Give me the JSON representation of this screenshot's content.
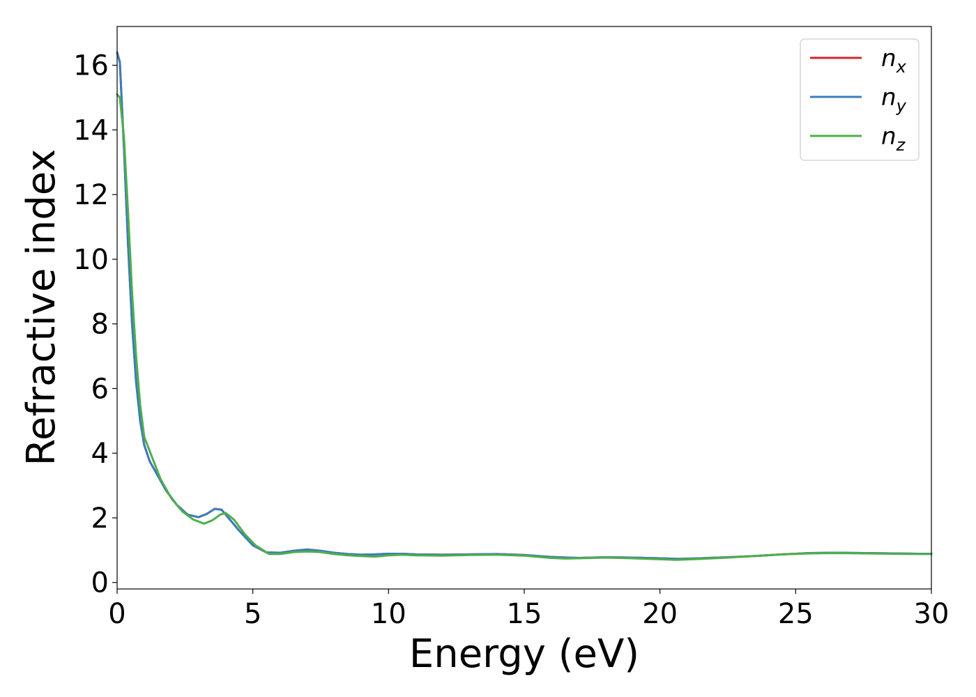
{
  "chart_data": {
    "type": "line",
    "title": "",
    "xlabel": "Energy (eV)",
    "ylabel": "Refractive index",
    "xlim": [
      0,
      30
    ],
    "ylim": [
      -0.2,
      17.2
    ],
    "xticks": [
      0,
      5,
      10,
      15,
      20,
      25,
      30
    ],
    "yticks": [
      0,
      2,
      4,
      6,
      8,
      10,
      12,
      14,
      16
    ],
    "xtick_labels": [
      "0",
      "5",
      "10",
      "15",
      "20",
      "25",
      "30"
    ],
    "ytick_labels": [
      "0",
      "2",
      "4",
      "6",
      "8",
      "10",
      "12",
      "14",
      "16"
    ],
    "grid": false,
    "legend_position": "top-right",
    "series": [
      {
        "name": "n",
        "subscript": "x",
        "color": "#d62728",
        "points": [
          [
            0,
            16.4
          ],
          [
            0.1,
            16.1
          ],
          [
            0.25,
            13.5
          ],
          [
            0.4,
            10.5
          ],
          [
            0.55,
            8.0
          ],
          [
            0.7,
            6.2
          ],
          [
            0.85,
            5.0
          ],
          [
            1.0,
            4.25
          ],
          [
            1.2,
            3.75
          ],
          [
            1.5,
            3.3
          ],
          [
            1.8,
            2.85
          ],
          [
            2.2,
            2.4
          ],
          [
            2.6,
            2.1
          ],
          [
            3.0,
            2.02
          ],
          [
            3.3,
            2.12
          ],
          [
            3.6,
            2.28
          ],
          [
            3.85,
            2.25
          ],
          [
            4.1,
            2.0
          ],
          [
            4.5,
            1.6
          ],
          [
            5.0,
            1.15
          ],
          [
            5.5,
            0.93
          ],
          [
            6.0,
            0.92
          ],
          [
            6.5,
            0.98
          ],
          [
            7.0,
            1.02
          ],
          [
            7.5,
            0.98
          ],
          [
            8.0,
            0.92
          ],
          [
            8.5,
            0.88
          ],
          [
            9.0,
            0.86
          ],
          [
            9.5,
            0.87
          ],
          [
            10.0,
            0.89
          ],
          [
            10.5,
            0.89
          ],
          [
            11.0,
            0.87
          ],
          [
            12.0,
            0.86
          ],
          [
            13.0,
            0.87
          ],
          [
            14.0,
            0.88
          ],
          [
            15.0,
            0.85
          ],
          [
            16.0,
            0.79
          ],
          [
            17.0,
            0.76
          ],
          [
            18.0,
            0.78
          ],
          [
            19.0,
            0.77
          ],
          [
            20.0,
            0.75
          ],
          [
            20.7,
            0.73
          ],
          [
            21.5,
            0.75
          ],
          [
            22.5,
            0.78
          ],
          [
            23.5,
            0.82
          ],
          [
            24.5,
            0.87
          ],
          [
            25.5,
            0.91
          ],
          [
            26.5,
            0.92
          ],
          [
            27.5,
            0.91
          ],
          [
            28.5,
            0.9
          ],
          [
            29.5,
            0.89
          ],
          [
            30.0,
            0.89
          ]
        ]
      },
      {
        "name": "n",
        "subscript": "y",
        "color": "#3a7dbe",
        "points": [
          [
            0,
            16.4
          ],
          [
            0.1,
            16.1
          ],
          [
            0.25,
            13.5
          ],
          [
            0.4,
            10.5
          ],
          [
            0.55,
            8.0
          ],
          [
            0.7,
            6.2
          ],
          [
            0.85,
            5.0
          ],
          [
            1.0,
            4.25
          ],
          [
            1.2,
            3.75
          ],
          [
            1.5,
            3.3
          ],
          [
            1.8,
            2.85
          ],
          [
            2.2,
            2.4
          ],
          [
            2.6,
            2.1
          ],
          [
            3.0,
            2.02
          ],
          [
            3.3,
            2.12
          ],
          [
            3.6,
            2.28
          ],
          [
            3.85,
            2.25
          ],
          [
            4.1,
            2.0
          ],
          [
            4.5,
            1.6
          ],
          [
            5.0,
            1.15
          ],
          [
            5.5,
            0.93
          ],
          [
            6.0,
            0.92
          ],
          [
            6.5,
            0.98
          ],
          [
            7.0,
            1.02
          ],
          [
            7.5,
            0.98
          ],
          [
            8.0,
            0.92
          ],
          [
            8.5,
            0.88
          ],
          [
            9.0,
            0.86
          ],
          [
            9.5,
            0.87
          ],
          [
            10.0,
            0.89
          ],
          [
            10.5,
            0.89
          ],
          [
            11.0,
            0.87
          ],
          [
            12.0,
            0.86
          ],
          [
            13.0,
            0.87
          ],
          [
            14.0,
            0.88
          ],
          [
            15.0,
            0.85
          ],
          [
            16.0,
            0.79
          ],
          [
            17.0,
            0.76
          ],
          [
            18.0,
            0.78
          ],
          [
            19.0,
            0.77
          ],
          [
            20.0,
            0.75
          ],
          [
            20.7,
            0.73
          ],
          [
            21.5,
            0.75
          ],
          [
            22.5,
            0.78
          ],
          [
            23.5,
            0.82
          ],
          [
            24.5,
            0.87
          ],
          [
            25.5,
            0.91
          ],
          [
            26.5,
            0.92
          ],
          [
            27.5,
            0.91
          ],
          [
            28.5,
            0.9
          ],
          [
            29.5,
            0.89
          ],
          [
            30.0,
            0.89
          ]
        ]
      },
      {
        "name": "n",
        "subscript": "z",
        "color": "#4daf4a",
        "points": [
          [
            0,
            15.1
          ],
          [
            0.1,
            15.0
          ],
          [
            0.25,
            13.8
          ],
          [
            0.4,
            11.5
          ],
          [
            0.55,
            9.0
          ],
          [
            0.7,
            7.0
          ],
          [
            0.85,
            5.5
          ],
          [
            1.0,
            4.5
          ],
          [
            1.3,
            3.85
          ],
          [
            1.6,
            3.2
          ],
          [
            2.0,
            2.6
          ],
          [
            2.4,
            2.2
          ],
          [
            2.8,
            1.95
          ],
          [
            3.2,
            1.82
          ],
          [
            3.5,
            1.92
          ],
          [
            3.8,
            2.1
          ],
          [
            4.0,
            2.15
          ],
          [
            4.3,
            1.95
          ],
          [
            4.7,
            1.5
          ],
          [
            5.1,
            1.15
          ],
          [
            5.6,
            0.88
          ],
          [
            6.0,
            0.88
          ],
          [
            6.5,
            0.94
          ],
          [
            7.0,
            0.96
          ],
          [
            7.5,
            0.94
          ],
          [
            8.0,
            0.88
          ],
          [
            8.5,
            0.84
          ],
          [
            9.0,
            0.82
          ],
          [
            9.5,
            0.8
          ],
          [
            10.0,
            0.84
          ],
          [
            10.5,
            0.86
          ],
          [
            11.0,
            0.84
          ],
          [
            12.0,
            0.83
          ],
          [
            13.0,
            0.85
          ],
          [
            14.0,
            0.86
          ],
          [
            15.0,
            0.83
          ],
          [
            16.0,
            0.76
          ],
          [
            16.5,
            0.74
          ],
          [
            17.0,
            0.75
          ],
          [
            18.0,
            0.77
          ],
          [
            19.0,
            0.75
          ],
          [
            20.0,
            0.72
          ],
          [
            20.6,
            0.7
          ],
          [
            21.5,
            0.73
          ],
          [
            22.5,
            0.77
          ],
          [
            23.5,
            0.82
          ],
          [
            24.5,
            0.87
          ],
          [
            25.5,
            0.9
          ],
          [
            26.5,
            0.91
          ],
          [
            27.5,
            0.9
          ],
          [
            28.5,
            0.89
          ],
          [
            29.5,
            0.88
          ],
          [
            30.0,
            0.88
          ]
        ]
      }
    ]
  }
}
